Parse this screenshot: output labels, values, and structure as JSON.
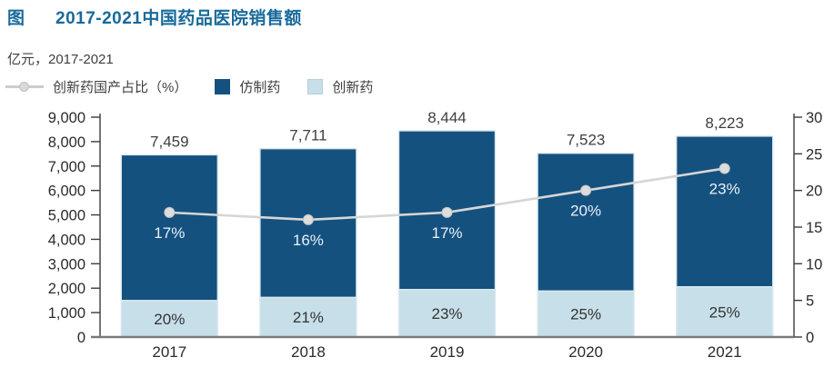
{
  "page": {
    "figure_label": "图",
    "title": "2017-2021中国药品医院销售额",
    "subtitle": "亿元，2017-2021"
  },
  "legend": {
    "line_item": "创新药国产占比（%）",
    "dark_item": "仿制药",
    "light_item": "创新药"
  },
  "colors": {
    "title": "#186a9a",
    "dark_bar": "#15517f",
    "light_bar": "#c7dfe9",
    "bar_stroke": "#d9e8f0",
    "line": "#d6d6d6",
    "marker_fill": "#dddddd",
    "marker_stroke": "#c6c6c6",
    "axis": "#3c3c3c",
    "baseline": "#7a7a7a",
    "tick_text": "#2b2b2b",
    "total_text": "#3f3f3f",
    "light_pct_text": "#333333",
    "dark_pct_text": "#e9f1f7"
  },
  "chart_data": {
    "type": "bar",
    "subtype": "stacked-column-with-line",
    "title": "2017-2021中国药品医院销售额",
    "unit": "亿元",
    "period": "2017-2021",
    "categories": [
      "2017",
      "2018",
      "2019",
      "2020",
      "2021"
    ],
    "totals": [
      7459,
      7711,
      8444,
      7523,
      8223
    ],
    "total_labels": [
      "7,459",
      "7,711",
      "8,444",
      "7,523",
      "8,223"
    ],
    "series": [
      {
        "name": "创新药",
        "role": "stack-bottom",
        "color": "#c7dfe9",
        "share_of_total_pct": [
          20,
          21,
          23,
          25,
          25
        ],
        "labels": [
          "20%",
          "21%",
          "23%",
          "25%",
          "25%"
        ]
      },
      {
        "name": "仿制药",
        "role": "stack-top",
        "color": "#15517f"
      }
    ],
    "line_series": {
      "name": "创新药国产占比（%）",
      "axis": "right",
      "color": "#d6d6d6",
      "values": [
        17,
        16,
        17,
        20,
        23
      ],
      "labels": [
        "17%",
        "16%",
        "17%",
        "20%",
        "23%"
      ]
    },
    "left_axis": {
      "min": 0,
      "max": 9000,
      "step": 1000,
      "tick_labels": [
        "0",
        "1,000",
        "2,000",
        "3,000",
        "4,000",
        "5,000",
        "6,000",
        "7,000",
        "8,000",
        "9,000"
      ]
    },
    "right_axis": {
      "min": 0,
      "max": 30,
      "step": 5,
      "tick_labels": [
        "0",
        "5",
        "10",
        "15",
        "20",
        "25",
        "30"
      ]
    },
    "grid": false,
    "legend_position": "top-left"
  }
}
